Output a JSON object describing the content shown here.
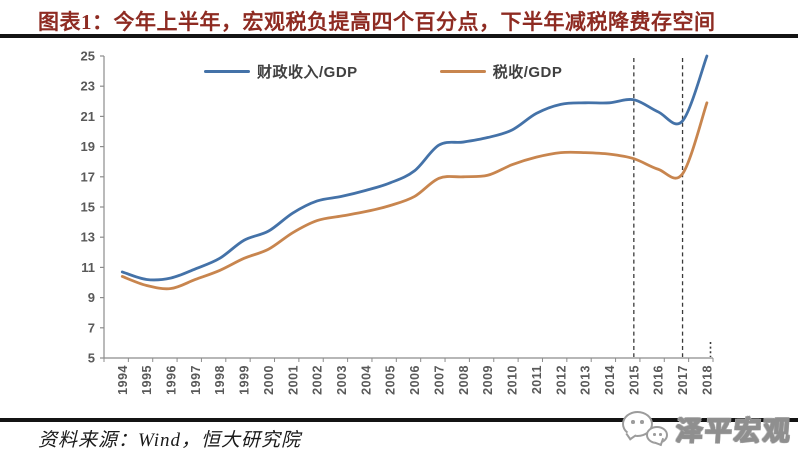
{
  "title": "图表1：今年上半年，宏观税负提高四个百分点，下半年减税降费存空间",
  "source_note": "资料来源：Wind，恒大研究院",
  "watermark": {
    "icon": "wechat-bubbles-icon",
    "text": "泽平宏观"
  },
  "colors": {
    "title_text": "#8E2B22",
    "divider": "#141414",
    "axis": "#8C8C8C",
    "tick_label": "#595959",
    "legend_text": "#404040",
    "dashed_line": "#3A3A3A"
  },
  "chart_data": {
    "type": "line",
    "x": [
      1994,
      1995,
      1996,
      1997,
      1998,
      1999,
      2000,
      2001,
      2002,
      2003,
      2004,
      2005,
      2006,
      2007,
      2008,
      2009,
      2010,
      2011,
      2012,
      2013,
      2014,
      2015,
      2016,
      2017,
      2018
    ],
    "series": [
      {
        "name": "财政收入/GDP",
        "color": "#4472A8",
        "values": [
          10.7,
          10.2,
          10.3,
          10.9,
          11.6,
          12.8,
          13.4,
          14.6,
          15.4,
          15.7,
          16.1,
          16.6,
          17.4,
          19.1,
          19.3,
          19.6,
          20.1,
          21.2,
          21.8,
          21.9,
          21.9,
          22.1,
          21.3,
          20.7,
          25.0
        ]
      },
      {
        "name": "税收/GDP",
        "color": "#C8854E",
        "values": [
          10.4,
          9.8,
          9.6,
          10.2,
          10.8,
          11.6,
          12.2,
          13.3,
          14.1,
          14.4,
          14.7,
          15.1,
          15.7,
          16.9,
          17.0,
          17.1,
          17.8,
          18.3,
          18.6,
          18.6,
          18.5,
          18.2,
          17.5,
          17.2,
          21.9
        ]
      }
    ],
    "ylim": [
      5,
      25
    ],
    "ytick_step": 2,
    "grid": false,
    "legend_position": "top-inside",
    "dashed_vlines_x": [
      2015,
      2017
    ],
    "axis_end_dotted_mark": true
  }
}
